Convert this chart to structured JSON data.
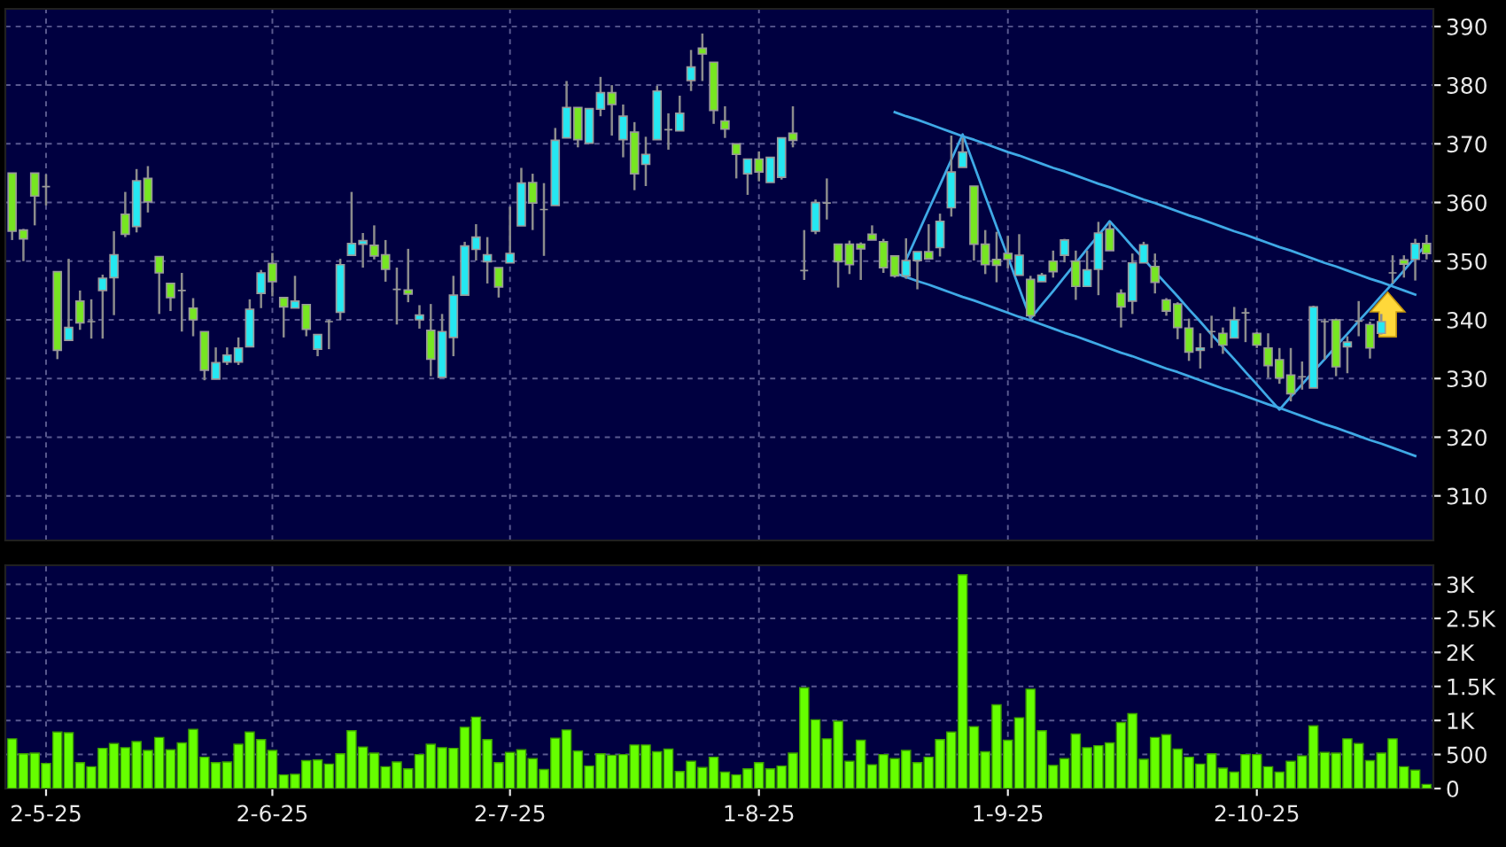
{
  "chart_data": [
    {
      "type": "candlestick",
      "categories": [
        null,
        null,
        null,
        null,
        null,
        null,
        null,
        null,
        null,
        null,
        null,
        null,
        null,
        null,
        null,
        null,
        null,
        null,
        null,
        null,
        null,
        null,
        null,
        null,
        null,
        null,
        null,
        null,
        null,
        null,
        null,
        null,
        null,
        null,
        null,
        null,
        null,
        null,
        null,
        null,
        null,
        null,
        null,
        null,
        null,
        null,
        null,
        null,
        null,
        null,
        null,
        null,
        null,
        null,
        null,
        null,
        null,
        null,
        null,
        null,
        null,
        null,
        null,
        null,
        null,
        null,
        null,
        null,
        null,
        null,
        null,
        null,
        null,
        null,
        null,
        null,
        null,
        null,
        null,
        null,
        null,
        null,
        null,
        null,
        null,
        null,
        null,
        null,
        null,
        null,
        null,
        null,
        null,
        null,
        null,
        null,
        null,
        null,
        null,
        null,
        null,
        null,
        null,
        null,
        null,
        null,
        null,
        null,
        null,
        null,
        null,
        null,
        null,
        null,
        null,
        null,
        null,
        null,
        null,
        null,
        null,
        null,
        null,
        null,
        null,
        null
      ],
      "ohlc": [
        [
          365.0,
          365.0,
          353.6,
          355.1
        ],
        [
          355.3,
          355.5,
          350.0,
          353.8
        ],
        [
          365.0,
          365.0,
          356.1,
          361.1
        ],
        [
          362.7,
          364.8,
          359.5,
          362.7
        ],
        [
          348.2,
          348.2,
          333.3,
          334.8
        ],
        [
          336.5,
          350.4,
          336.5,
          338.7
        ],
        [
          343.2,
          345.0,
          338.3,
          339.5
        ],
        [
          339.7,
          343.5,
          336.8,
          339.7
        ],
        [
          345.0,
          347.7,
          336.8,
          347.1
        ],
        [
          347.2,
          355.1,
          340.8,
          351.1
        ],
        [
          358.0,
          361.8,
          354.1,
          354.6
        ],
        [
          355.9,
          365.7,
          354.9,
          363.7
        ],
        [
          364.1,
          366.2,
          358.3,
          360.1
        ],
        [
          350.8,
          350.8,
          341.0,
          348.0
        ],
        [
          346.2,
          346.2,
          341.5,
          343.8
        ],
        [
          345.0,
          348.0,
          338.0,
          345.0
        ],
        [
          342.0,
          343.7,
          337.2,
          340.0
        ],
        [
          338.0,
          338.0,
          329.7,
          331.4
        ],
        [
          329.9,
          335.3,
          329.9,
          332.7
        ],
        [
          332.8,
          335.3,
          332.3,
          334.0
        ],
        [
          332.8,
          337.0,
          332.3,
          335.2
        ],
        [
          335.4,
          343.5,
          335.4,
          341.8
        ],
        [
          344.5,
          348.5,
          342.0,
          348.0
        ],
        [
          349.6,
          351.4,
          344.0,
          346.5
        ],
        [
          343.8,
          343.8,
          337.0,
          342.2
        ],
        [
          342.0,
          347.5,
          342.0,
          343.2
        ],
        [
          342.6,
          342.6,
          337.2,
          338.4
        ],
        [
          335.0,
          337.5,
          333.8,
          337.5
        ],
        [
          339.7,
          340.0,
          335.0,
          339.7
        ],
        [
          341.3,
          350.4,
          340.0,
          349.4
        ],
        [
          351.0,
          361.8,
          351.0,
          353.0
        ],
        [
          352.9,
          354.8,
          348.9,
          353.5
        ],
        [
          352.7,
          356.1,
          350.3,
          350.9
        ],
        [
          351.1,
          353.6,
          346.5,
          348.6
        ],
        [
          345.2,
          348.9,
          339.2,
          345.2
        ],
        [
          345.1,
          352.1,
          343.0,
          344.4
        ],
        [
          340.0,
          342.5,
          338.5,
          340.8
        ],
        [
          338.2,
          342.7,
          330.4,
          333.3
        ],
        [
          330.2,
          341.0,
          330.2,
          338.0
        ],
        [
          337.0,
          347.5,
          333.8,
          344.2
        ],
        [
          344.2,
          353.3,
          344.2,
          352.6
        ],
        [
          352.0,
          356.3,
          350.1,
          354.1
        ],
        [
          349.9,
          354.1,
          346.2,
          351.1
        ],
        [
          348.9,
          348.9,
          343.8,
          345.6
        ],
        [
          349.7,
          359.3,
          349.7,
          351.3
        ],
        [
          356.0,
          365.9,
          356.0,
          363.3
        ],
        [
          363.4,
          364.9,
          355.3,
          359.9
        ],
        [
          358.8,
          363.3,
          350.9,
          358.8
        ],
        [
          359.5,
          372.7,
          359.5,
          370.6
        ],
        [
          371.0,
          380.7,
          371.0,
          376.2
        ],
        [
          376.2,
          376.2,
          369.4,
          370.7
        ],
        [
          370.1,
          376.0,
          370.1,
          376.0
        ],
        [
          375.9,
          381.4,
          374.7,
          378.7
        ],
        [
          378.7,
          380.0,
          371.4,
          376.7
        ],
        [
          370.7,
          376.7,
          367.7,
          374.7
        ],
        [
          372.0,
          373.7,
          362.1,
          364.9
        ],
        [
          366.5,
          371.2,
          362.8,
          368.2
        ],
        [
          370.7,
          379.9,
          370.7,
          379.0
        ],
        [
          372.4,
          375.2,
          369.0,
          372.4
        ],
        [
          372.2,
          378.2,
          372.2,
          375.2
        ],
        [
          380.8,
          386.0,
          379.0,
          383.1
        ],
        [
          386.3,
          388.8,
          380.7,
          385.3
        ],
        [
          383.9,
          383.9,
          373.4,
          375.7
        ],
        [
          373.9,
          376.4,
          371.0,
          372.5
        ],
        [
          370.0,
          370.0,
          364.1,
          368.2
        ],
        [
          364.9,
          367.4,
          361.3,
          367.4
        ],
        [
          367.4,
          368.7,
          363.6,
          365.2
        ],
        [
          363.4,
          367.7,
          363.4,
          367.7
        ],
        [
          364.3,
          371.0,
          363.9,
          371.0
        ],
        [
          371.8,
          376.4,
          369.4,
          370.6
        ],
        [
          348.4,
          355.3,
          346.8,
          348.4
        ],
        [
          355.1,
          360.5,
          354.6,
          360.0
        ],
        [
          359.9,
          364.1,
          357.1,
          359.9
        ],
        [
          352.9,
          352.9,
          345.5,
          349.9
        ],
        [
          352.9,
          353.5,
          347.8,
          349.4
        ],
        [
          352.9,
          353.2,
          346.8,
          352.1
        ],
        [
          354.6,
          356.1,
          353.6,
          353.6
        ],
        [
          353.3,
          353.8,
          348.0,
          348.9
        ],
        [
          350.9,
          350.9,
          347.2,
          347.5
        ],
        [
          347.5,
          353.9,
          347.0,
          350.1
        ],
        [
          350.1,
          351.6,
          345.2,
          351.6
        ],
        [
          351.6,
          356.3,
          350.4,
          350.4
        ],
        [
          352.3,
          358.1,
          350.8,
          356.8
        ],
        [
          359.1,
          371.4,
          357.6,
          365.2
        ],
        [
          366.0,
          371.0,
          366.0,
          368.6
        ],
        [
          362.8,
          362.8,
          350.1,
          352.9
        ],
        [
          352.9,
          355.3,
          347.8,
          349.4
        ],
        [
          350.3,
          355.0,
          346.4,
          349.3
        ],
        [
          351.3,
          354.3,
          348.8,
          350.3
        ],
        [
          347.6,
          354.6,
          347.6,
          351.0
        ],
        [
          346.9,
          347.5,
          340.2,
          340.7
        ],
        [
          346.5,
          348.0,
          346.5,
          347.6
        ],
        [
          350.0,
          351.8,
          347.2,
          348.2
        ],
        [
          351.0,
          353.8,
          349.8,
          353.6
        ],
        [
          350.0,
          351.8,
          343.4,
          345.7
        ],
        [
          345.7,
          351.8,
          345.7,
          348.5
        ],
        [
          348.6,
          356.7,
          344.2,
          354.8
        ],
        [
          355.5,
          356.5,
          351.8,
          351.8
        ],
        [
          344.5,
          345.2,
          338.7,
          342.2
        ],
        [
          343.2,
          351.3,
          341.0,
          349.7
        ],
        [
          349.7,
          353.3,
          349.7,
          352.8
        ],
        [
          349.1,
          351.3,
          344.5,
          346.4
        ],
        [
          343.4,
          343.7,
          340.7,
          341.5
        ],
        [
          342.7,
          343.0,
          336.7,
          338.7
        ],
        [
          338.6,
          340.2,
          333.0,
          334.5
        ],
        [
          334.8,
          337.7,
          331.7,
          335.2
        ],
        [
          338.0,
          340.7,
          335.2,
          338.0
        ],
        [
          337.7,
          338.7,
          334.2,
          335.7
        ],
        [
          336.9,
          342.2,
          336.9,
          340.0
        ],
        [
          341.2,
          342.0,
          336.2,
          341.2
        ],
        [
          337.7,
          337.9,
          335.2,
          335.7
        ],
        [
          335.2,
          337.7,
          330.1,
          332.2
        ],
        [
          333.2,
          335.2,
          329.1,
          330.1
        ],
        [
          330.6,
          335.2,
          326.1,
          327.4
        ],
        [
          330.3,
          332.9,
          328.1,
          330.3
        ],
        [
          328.4,
          342.4,
          328.4,
          342.2
        ],
        [
          339.7,
          340.2,
          333.2,
          339.7
        ],
        [
          340.0,
          340.2,
          330.4,
          332.0
        ],
        [
          335.4,
          337.2,
          330.9,
          336.2
        ],
        [
          339.8,
          343.2,
          337.2,
          339.8
        ],
        [
          339.2,
          339.7,
          333.4,
          335.2
        ],
        [
          337.7,
          341.0,
          337.5,
          339.7
        ],
        [
          348.0,
          351.0,
          346.2,
          348.0
        ],
        [
          350.2,
          351.0,
          347.2,
          349.5
        ],
        [
          350.3,
          353.8,
          346.7,
          353.0
        ],
        [
          353.0,
          354.5,
          350.3,
          351.3
        ]
      ],
      "colors": [
        "#77e622",
        "#77e622",
        "#77e622",
        "#a0a0a0",
        "#77e622",
        "#25e8f2",
        "#77e622",
        "#a0a0a0",
        "#25e8f2",
        "#25e8f2",
        "#77e622",
        "#25e8f2",
        "#77e622",
        "#77e622",
        "#77e622",
        "#a0a0a0",
        "#77e622",
        "#77e622",
        "#25e8f2",
        "#25e8f2",
        "#25e8f2",
        "#25e8f2",
        "#25e8f2",
        "#77e622",
        "#77e622",
        "#25e8f2",
        "#77e622",
        "#25e8f2",
        "#a0a0a0",
        "#25e8f2",
        "#25e8f2",
        "#25e8f2",
        "#77e622",
        "#77e622",
        "#a0a0a0",
        "#77e622",
        "#25e8f2",
        "#77e622",
        "#25e8f2",
        "#25e8f2",
        "#25e8f2",
        "#25e8f2",
        "#25e8f2",
        "#77e622",
        "#25e8f2",
        "#25e8f2",
        "#77e622",
        "#a0a0a0",
        "#25e8f2",
        "#25e8f2",
        "#77e622",
        "#25e8f2",
        "#25e8f2",
        "#77e622",
        "#25e8f2",
        "#77e622",
        "#25e8f2",
        "#25e8f2",
        "#a0a0a0",
        "#25e8f2",
        "#25e8f2",
        "#77e622",
        "#77e622",
        "#77e622",
        "#77e622",
        "#25e8f2",
        "#77e622",
        "#25e8f2",
        "#25e8f2",
        "#77e622",
        "#a0a0a0",
        "#25e8f2",
        "#a0a0a0",
        "#77e622",
        "#77e622",
        "#77e622",
        "#77e622",
        "#77e622",
        "#77e622",
        "#25e8f2",
        "#25e8f2",
        "#77e622",
        "#25e8f2",
        "#25e8f2",
        "#25e8f2",
        "#77e622",
        "#77e622",
        "#77e622",
        "#77e622",
        "#25e8f2",
        "#77e622",
        "#25e8f2",
        "#77e622",
        "#25e8f2",
        "#77e622",
        "#25e8f2",
        "#25e8f2",
        "#77e622",
        "#77e622",
        "#25e8f2",
        "#25e8f2",
        "#77e622",
        "#77e622",
        "#77e622",
        "#77e622",
        "#25e8f2",
        "#a0a0a0",
        "#77e622",
        "#25e8f2",
        "#a0a0a0",
        "#77e622",
        "#77e622",
        "#77e622",
        "#77e622",
        "#a0a0a0",
        "#25e8f2",
        "#a0a0a0",
        "#77e622",
        "#25e8f2",
        "#a0a0a0",
        "#77e622",
        "#25e8f2",
        "#a0a0a0",
        "#77e622",
        "#25e8f2",
        "#77e622"
      ],
      "series": [
        {
          "type": "line",
          "color": "#3fa9e6",
          "values": [
            null,
            null,
            null,
            null,
            null,
            null,
            null,
            null,
            null,
            null,
            null,
            null,
            null,
            null,
            null,
            null,
            null,
            null,
            null,
            null,
            null,
            null,
            null,
            null,
            null,
            null,
            null,
            null,
            null,
            null,
            null,
            null,
            null,
            null,
            null,
            null,
            null,
            null,
            null,
            null,
            null,
            null,
            null,
            null,
            null,
            null,
            null,
            null,
            null,
            null,
            null,
            null,
            null,
            null,
            null,
            null,
            null,
            null,
            null,
            null,
            null,
            null,
            null,
            null,
            null,
            null,
            null,
            null,
            null,
            null,
            null,
            null,
            null,
            null,
            null,
            null,
            null,
            null,
            375.4,
            374.7,
            374.1,
            373.4,
            372.7,
            372.0,
            371.3,
            370.7,
            370.0,
            369.3,
            368.6,
            368.0,
            367.3,
            366.6,
            365.9,
            365.3,
            364.6,
            363.9,
            363.2,
            362.6,
            361.9,
            361.2,
            360.5,
            359.9,
            359.2,
            358.5,
            357.8,
            357.2,
            356.5,
            355.8,
            355.1,
            354.5,
            353.8,
            353.1,
            352.4,
            351.8,
            351.1,
            350.4,
            349.7,
            349.1,
            348.4,
            347.7,
            347.0,
            346.4,
            345.7,
            345.0,
            344.3,
            null
          ]
        },
        {
          "type": "line",
          "color": "#3fa9e6",
          "values": [
            null,
            null,
            null,
            null,
            null,
            null,
            null,
            null,
            null,
            null,
            null,
            null,
            null,
            null,
            null,
            null,
            null,
            null,
            null,
            null,
            null,
            null,
            null,
            null,
            null,
            null,
            null,
            null,
            null,
            null,
            null,
            null,
            null,
            null,
            null,
            null,
            null,
            null,
            null,
            null,
            null,
            null,
            null,
            null,
            null,
            null,
            null,
            null,
            null,
            null,
            null,
            null,
            null,
            null,
            null,
            null,
            null,
            null,
            null,
            null,
            null,
            null,
            null,
            null,
            null,
            null,
            null,
            null,
            null,
            null,
            null,
            null,
            null,
            null,
            null,
            null,
            null,
            null,
            348.0,
            347.3,
            346.6,
            346.0,
            345.3,
            344.6,
            343.9,
            343.3,
            342.6,
            341.9,
            341.2,
            340.5,
            339.9,
            339.2,
            338.5,
            337.8,
            337.2,
            336.5,
            335.8,
            335.1,
            334.4,
            333.8,
            333.1,
            332.4,
            331.7,
            331.1,
            330.4,
            329.7,
            329.0,
            328.3,
            327.7,
            327.0,
            326.3,
            325.6,
            325.0,
            324.3,
            323.6,
            322.9,
            322.2,
            321.6,
            320.9,
            320.2,
            319.5,
            318.9,
            318.2,
            317.5,
            316.8,
            null
          ]
        },
        {
          "type": "line",
          "color": "#3fa9e6",
          "values": [
            null,
            null,
            null,
            null,
            null,
            null,
            null,
            null,
            null,
            null,
            null,
            null,
            null,
            null,
            null,
            null,
            null,
            null,
            null,
            null,
            null,
            null,
            null,
            null,
            null,
            null,
            null,
            null,
            null,
            null,
            null,
            null,
            null,
            null,
            null,
            null,
            null,
            null,
            null,
            null,
            null,
            null,
            null,
            null,
            null,
            null,
            null,
            null,
            null,
            null,
            null,
            null,
            null,
            null,
            null,
            null,
            null,
            null,
            null,
            null,
            null,
            null,
            null,
            null,
            null,
            null,
            null,
            null,
            null,
            null,
            null,
            null,
            null,
            null,
            null,
            null,
            null,
            null,
            null,
            350.2,
            354.5,
            358.8,
            363.0,
            367.3,
            371.6,
            366.4,
            361.1,
            355.9,
            350.7,
            345.4,
            340.2,
            342.6,
            344.9,
            347.3,
            349.7,
            352.1,
            354.4,
            356.8,
            354.7,
            352.5,
            350.4,
            348.2,
            346.1,
            344.0,
            341.8,
            339.7,
            337.5,
            335.4,
            333.3,
            331.1,
            329.0,
            326.8,
            324.7,
            326.9,
            329.0,
            331.2,
            333.3,
            335.5,
            337.6,
            339.8,
            341.9,
            344.1,
            346.2,
            348.4,
            350.7,
            352.9
          ]
        }
      ],
      "ylim": [
        302.4,
        393
      ],
      "yticks": [
        310,
        320,
        330,
        340,
        350,
        360,
        370,
        380,
        390
      ],
      "grid": true,
      "tick_labels": "y",
      "marker": "none",
      "line_style": "solid"
    },
    {
      "type": "bar",
      "categories": [
        null,
        null,
        null,
        "2-5-25",
        null,
        null,
        null,
        null,
        null,
        null,
        null,
        null,
        null,
        null,
        null,
        null,
        null,
        null,
        null,
        null,
        null,
        null,
        null,
        "2-6-25",
        null,
        null,
        null,
        null,
        null,
        null,
        null,
        null,
        null,
        null,
        null,
        null,
        null,
        null,
        null,
        null,
        null,
        null,
        null,
        null,
        "2-7-25",
        null,
        null,
        null,
        null,
        null,
        null,
        null,
        null,
        null,
        null,
        null,
        null,
        null,
        null,
        null,
        null,
        null,
        null,
        null,
        null,
        null,
        "1-8-25",
        null,
        null,
        null,
        null,
        null,
        null,
        null,
        null,
        null,
        null,
        null,
        null,
        null,
        null,
        null,
        null,
        null,
        null,
        null,
        null,
        null,
        "1-9-25",
        null,
        null,
        null,
        null,
        null,
        null,
        null,
        null,
        null,
        null,
        null,
        null,
        null,
        null,
        null,
        null,
        null,
        null,
        null,
        null,
        null,
        "2-10-25",
        null,
        null,
        null,
        null,
        null,
        null,
        null,
        null,
        null,
        null,
        null,
        null,
        null,
        null,
        null
      ],
      "values": [
        730,
        510,
        520,
        370,
        830,
        820,
        380,
        320,
        590,
        660,
        600,
        690,
        560,
        750,
        570,
        670,
        870,
        460,
        380,
        390,
        650,
        830,
        720,
        560,
        200,
        210,
        410,
        420,
        360,
        510,
        850,
        610,
        520,
        320,
        390,
        290,
        500,
        650,
        600,
        590,
        900,
        1050,
        720,
        380,
        530,
        570,
        440,
        280,
        740,
        860,
        550,
        330,
        510,
        490,
        500,
        640,
        640,
        540,
        580,
        250,
        400,
        310,
        460,
        240,
        200,
        290,
        380,
        290,
        330,
        520,
        1480,
        1010,
        730,
        990,
        400,
        710,
        350,
        500,
        440,
        560,
        380,
        460,
        720,
        830,
        3140,
        910,
        540,
        1230,
        710,
        1040,
        1460,
        850,
        340,
        440,
        800,
        600,
        630,
        670,
        970,
        1100,
        430,
        750,
        790,
        580,
        460,
        360,
        510,
        300,
        240,
        500,
        500,
        320,
        240,
        400,
        480,
        920,
        530,
        520,
        730,
        660,
        410,
        520,
        730,
        320,
        270,
        60
      ],
      "color": "#66ff00",
      "ylim": [
        0,
        3280
      ],
      "yticks": [
        0,
        500,
        {
          "value": 1000,
          "label": "1K"
        },
        {
          "value": 1500,
          "label": "1.5K"
        },
        {
          "value": 2000,
          "label": "2K"
        },
        {
          "value": 2500,
          "label": "2.5K"
        },
        {
          "value": 3000,
          "label": "3K"
        }
      ],
      "grid": true
    }
  ]
}
